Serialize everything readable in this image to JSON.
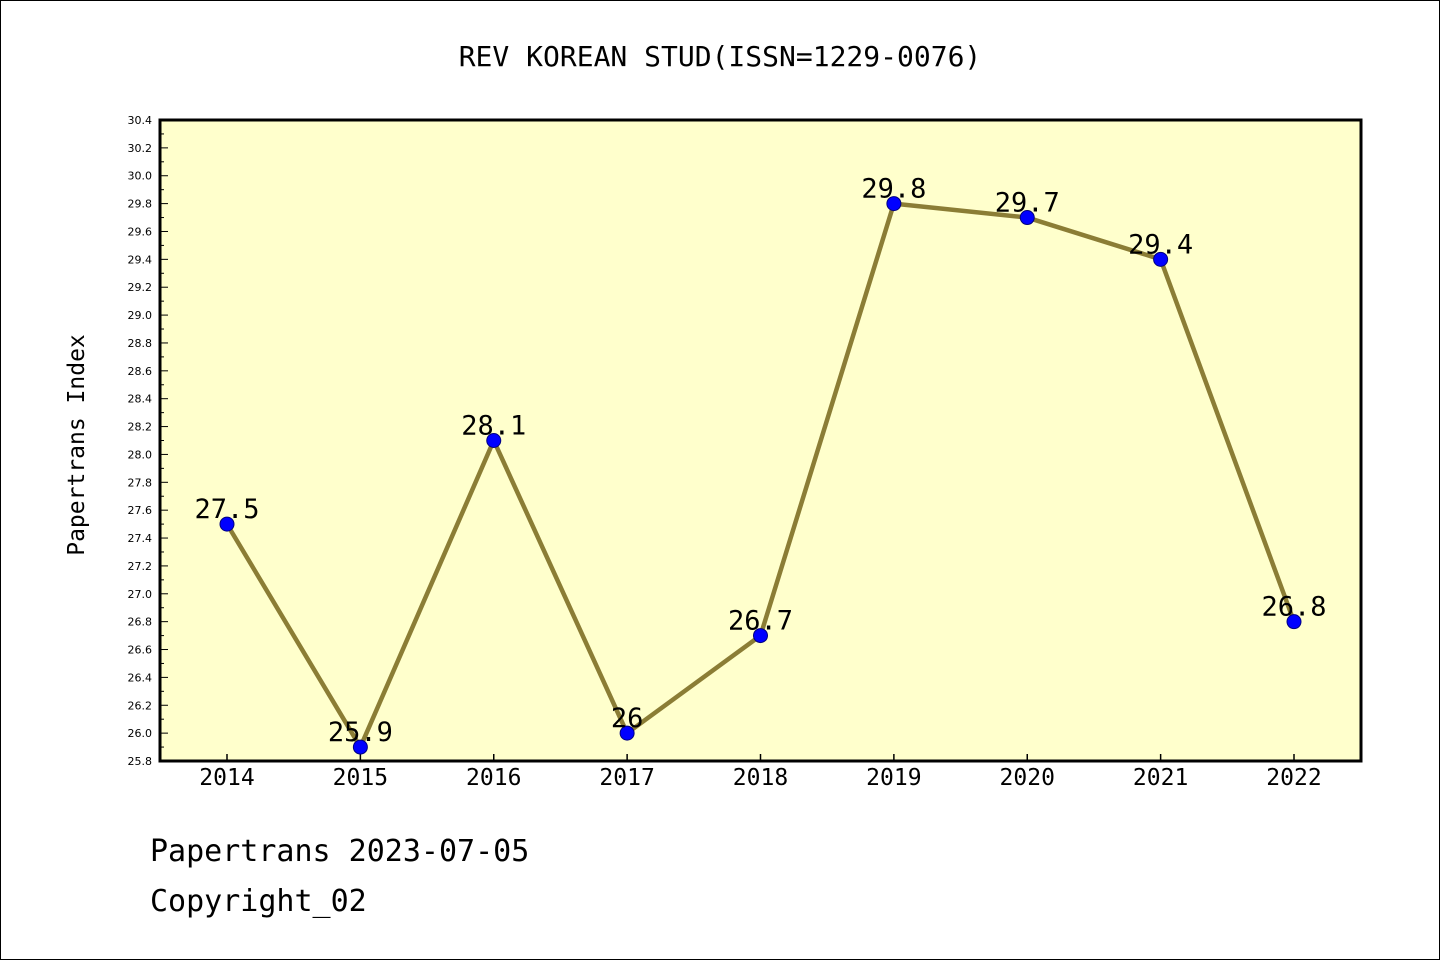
{
  "chart_data": {
    "type": "line",
    "title": "REV KOREAN STUD(ISSN=1229-0076)",
    "xlabel": "",
    "ylabel": "Papertrans Index",
    "categories": [
      "2014",
      "2015",
      "2016",
      "2017",
      "2018",
      "2019",
      "2020",
      "2021",
      "2022"
    ],
    "series": [
      {
        "values": [
          27.5,
          25.9,
          28.1,
          26.0,
          26.7,
          29.8,
          29.7,
          29.4,
          26.8
        ],
        "data_labels": [
          "27.5",
          "25.9",
          "28.1",
          "26",
          "26.7",
          "29.8",
          "29.7",
          "29.4",
          "26.8"
        ]
      }
    ],
    "ylim": [
      25.8,
      30.4
    ],
    "y_ticks": [
      "25.8",
      "26.0",
      "26.2",
      "26.4",
      "26.6",
      "26.8",
      "27.0",
      "27.2",
      "27.4",
      "27.6",
      "27.8",
      "28.0",
      "28.2",
      "28.4",
      "28.6",
      "28.8",
      "29.0",
      "29.2",
      "29.4",
      "29.6",
      "29.8",
      "30.0",
      "30.2",
      "30.4"
    ],
    "grid": false,
    "legend": "none"
  },
  "footer": {
    "date_line": "Papertrans 2023-07-05",
    "copyright_line": "Copyright_02"
  },
  "colors": {
    "plot_background": "#ffffcc",
    "line": "#8b7d35",
    "marker": "#0000ff",
    "axis": "#000000"
  }
}
